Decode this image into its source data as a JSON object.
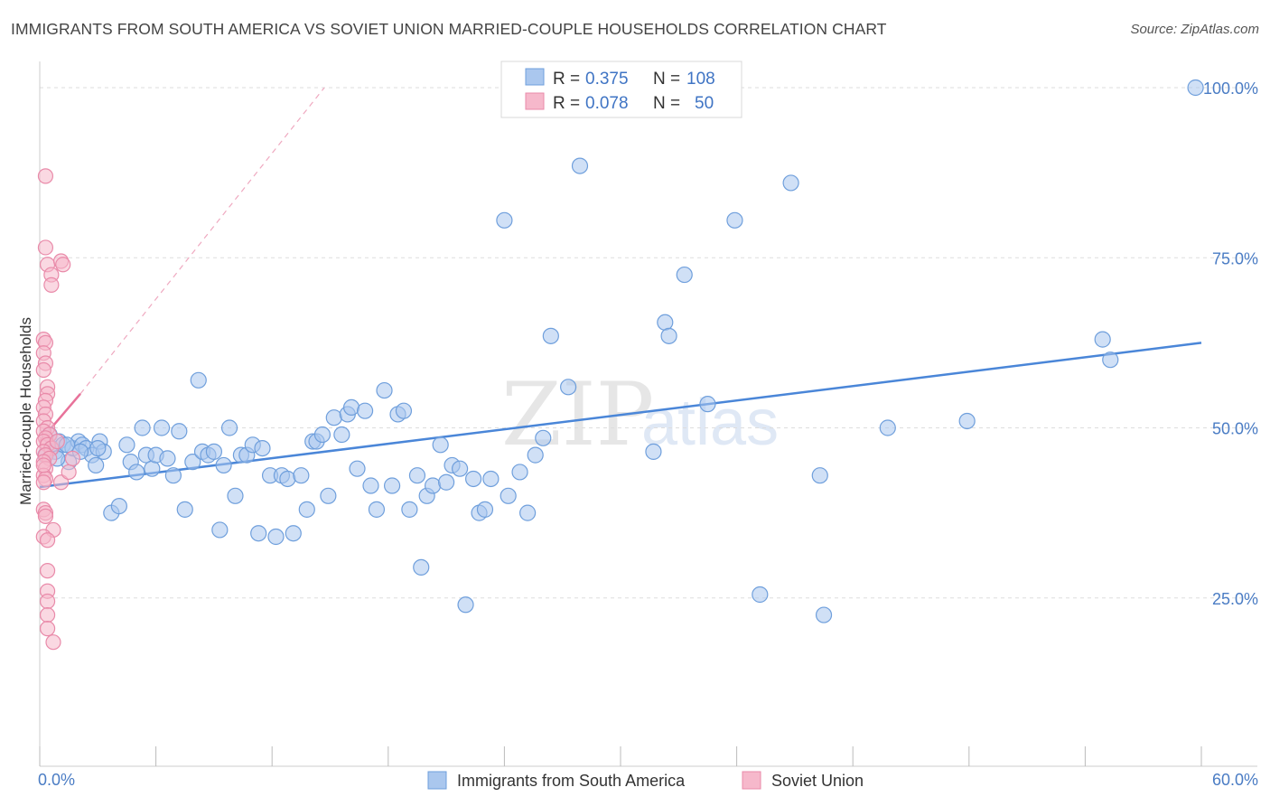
{
  "title": "IMMIGRANTS FROM SOUTH AMERICA VS SOVIET UNION MARRIED-COUPLE HOUSEHOLDS CORRELATION CHART",
  "source": "Source: ZipAtlas.com",
  "watermark": {
    "zip": "ZIP",
    "atlas": "atlas"
  },
  "colors": {
    "blue": "#4a86d8",
    "blue_fill": "#aac7ee",
    "pink": "#e8729a",
    "pink_fill": "#f6b8cb",
    "grid": "#dddddd"
  },
  "legend": {
    "rows": [
      {
        "r_label": "R =",
        "r_value": "0.375",
        "n_label": "N =",
        "n_value": "108"
      },
      {
        "r_label": "R =",
        "r_value": "0.078",
        "n_label": "N =",
        "n_value": "50"
      }
    ]
  },
  "chart_data": {
    "type": "scatter",
    "title": "IMMIGRANTS FROM SOUTH AMERICA VS SOVIET UNION MARRIED-COUPLE HOUSEHOLDS CORRELATION CHART",
    "xlabel": "",
    "ylabel": "Married-couple Households",
    "xlim": [
      0,
      60
    ],
    "ylim": [
      0,
      100
    ],
    "x_tick_labels": [
      "0.0%",
      "60.0%"
    ],
    "y_tick_labels": [
      "25.0%",
      "50.0%",
      "75.0%",
      "100.0%"
    ],
    "y_ticks": [
      25,
      50,
      75,
      100
    ],
    "grid": true,
    "series": [
      {
        "name": "Immigrants from South America",
        "color": "#4a86d8",
        "trend": {
          "x": [
            0,
            60
          ],
          "y": [
            41.3,
            62.5
          ]
        },
        "points": [
          [
            0.5,
            49
          ],
          [
            0.6,
            47
          ],
          [
            0.8,
            46.5
          ],
          [
            1.0,
            48
          ],
          [
            1.2,
            47.5
          ],
          [
            1.5,
            45
          ],
          [
            1.7,
            47
          ],
          [
            2.0,
            48
          ],
          [
            2.2,
            47.5
          ],
          [
            2.4,
            47
          ],
          [
            2.7,
            46
          ],
          [
            2.9,
            44.5
          ],
          [
            3.1,
            48
          ],
          [
            3.3,
            46.5
          ],
          [
            3.7,
            37.5
          ],
          [
            4.1,
            38.5
          ],
          [
            4.5,
            47.5
          ],
          [
            4.7,
            45
          ],
          [
            5.0,
            43.5
          ],
          [
            5.3,
            50
          ],
          [
            5.5,
            46
          ],
          [
            5.8,
            44
          ],
          [
            6.0,
            46
          ],
          [
            6.3,
            50
          ],
          [
            6.6,
            45.5
          ],
          [
            6.9,
            43
          ],
          [
            7.2,
            49.5
          ],
          [
            7.5,
            38
          ],
          [
            7.9,
            45
          ],
          [
            8.2,
            57
          ],
          [
            8.4,
            46.5
          ],
          [
            8.7,
            46
          ],
          [
            9.0,
            46.5
          ],
          [
            9.3,
            35
          ],
          [
            9.5,
            44.5
          ],
          [
            9.8,
            50
          ],
          [
            10.1,
            40
          ],
          [
            10.4,
            46
          ],
          [
            10.7,
            46
          ],
          [
            11.0,
            47.5
          ],
          [
            11.3,
            34.5
          ],
          [
            11.5,
            47
          ],
          [
            11.9,
            43
          ],
          [
            12.2,
            34
          ],
          [
            12.5,
            43
          ],
          [
            12.8,
            42.5
          ],
          [
            13.1,
            34.5
          ],
          [
            13.5,
            43
          ],
          [
            13.8,
            38
          ],
          [
            14.1,
            48
          ],
          [
            14.3,
            48
          ],
          [
            14.6,
            49
          ],
          [
            14.9,
            40
          ],
          [
            15.2,
            51.5
          ],
          [
            15.6,
            49
          ],
          [
            15.9,
            52
          ],
          [
            16.1,
            53
          ],
          [
            16.4,
            44
          ],
          [
            16.8,
            52.5
          ],
          [
            17.1,
            41.5
          ],
          [
            17.4,
            38
          ],
          [
            17.8,
            55.5
          ],
          [
            18.2,
            41.5
          ],
          [
            18.5,
            52
          ],
          [
            18.8,
            52.5
          ],
          [
            19.1,
            38
          ],
          [
            19.5,
            43
          ],
          [
            19.7,
            29.5
          ],
          [
            20.0,
            40
          ],
          [
            20.3,
            41.5
          ],
          [
            20.7,
            47.5
          ],
          [
            21.0,
            42
          ],
          [
            21.3,
            44.5
          ],
          [
            21.7,
            44
          ],
          [
            22.0,
            24
          ],
          [
            22.4,
            42.5
          ],
          [
            22.7,
            37.5
          ],
          [
            23.0,
            38
          ],
          [
            23.3,
            42.5
          ],
          [
            24.0,
            80.5
          ],
          [
            24.2,
            40
          ],
          [
            24.8,
            43.5
          ],
          [
            25.2,
            37.5
          ],
          [
            25.6,
            46
          ],
          [
            26.0,
            48.5
          ],
          [
            26.4,
            63.5
          ],
          [
            27.3,
            56
          ],
          [
            27.9,
            88.5
          ],
          [
            31.7,
            46.5
          ],
          [
            32.3,
            65.5
          ],
          [
            32.5,
            63.5
          ],
          [
            33.3,
            72.5
          ],
          [
            34.5,
            53.5
          ],
          [
            35.9,
            80.5
          ],
          [
            37.2,
            25.5
          ],
          [
            38.8,
            86
          ],
          [
            40.3,
            43
          ],
          [
            40.5,
            22.5
          ],
          [
            43.8,
            50
          ],
          [
            47.9,
            51
          ],
          [
            54.9,
            63
          ],
          [
            55.3,
            60
          ],
          [
            59.7,
            100
          ],
          [
            0.3,
            46
          ],
          [
            0.9,
            45.5
          ],
          [
            1.4,
            47.5
          ],
          [
            2.1,
            46.5
          ],
          [
            3.0,
            47
          ]
        ]
      },
      {
        "name": "Soviet Union",
        "color": "#e8729a",
        "trend": {
          "x": [
            0,
            2.1
          ],
          "y": [
            48.0,
            55.0
          ]
        },
        "dashed_extension": {
          "x": [
            2.1,
            14.7
          ],
          "y": [
            55.0,
            100.0
          ]
        },
        "points": [
          [
            0.3,
            87
          ],
          [
            0.3,
            76.5
          ],
          [
            0.4,
            74
          ],
          [
            0.6,
            72.5
          ],
          [
            0.6,
            71
          ],
          [
            1.1,
            74.5
          ],
          [
            1.2,
            74
          ],
          [
            0.2,
            63
          ],
          [
            0.3,
            62.5
          ],
          [
            0.2,
            61
          ],
          [
            0.3,
            59.5
          ],
          [
            0.2,
            58.5
          ],
          [
            0.4,
            56
          ],
          [
            0.4,
            55
          ],
          [
            0.3,
            54
          ],
          [
            0.2,
            53
          ],
          [
            0.3,
            52
          ],
          [
            0.2,
            51
          ],
          [
            0.4,
            50
          ],
          [
            0.2,
            49.5
          ],
          [
            0.5,
            49
          ],
          [
            0.3,
            48.5
          ],
          [
            0.2,
            48
          ],
          [
            0.4,
            47.5
          ],
          [
            0.6,
            47
          ],
          [
            0.2,
            46.5
          ],
          [
            0.3,
            46
          ],
          [
            0.5,
            45.5
          ],
          [
            0.2,
            45
          ],
          [
            0.3,
            44
          ],
          [
            0.2,
            43
          ],
          [
            0.3,
            42.5
          ],
          [
            0.2,
            42
          ],
          [
            1.1,
            42
          ],
          [
            1.5,
            43.5
          ],
          [
            1.7,
            45.5
          ],
          [
            0.2,
            38
          ],
          [
            0.3,
            37.5
          ],
          [
            0.3,
            37
          ],
          [
            0.7,
            35
          ],
          [
            0.2,
            34
          ],
          [
            0.4,
            33.5
          ],
          [
            0.4,
            29
          ],
          [
            0.4,
            26
          ],
          [
            0.4,
            24.5
          ],
          [
            0.4,
            22.5
          ],
          [
            0.4,
            20.5
          ],
          [
            0.7,
            18.5
          ],
          [
            0.2,
            44.5
          ],
          [
            0.9,
            48
          ]
        ]
      }
    ]
  },
  "bottom_legend": [
    {
      "label": "Immigrants from South America"
    },
    {
      "label": "Soviet Union"
    }
  ]
}
